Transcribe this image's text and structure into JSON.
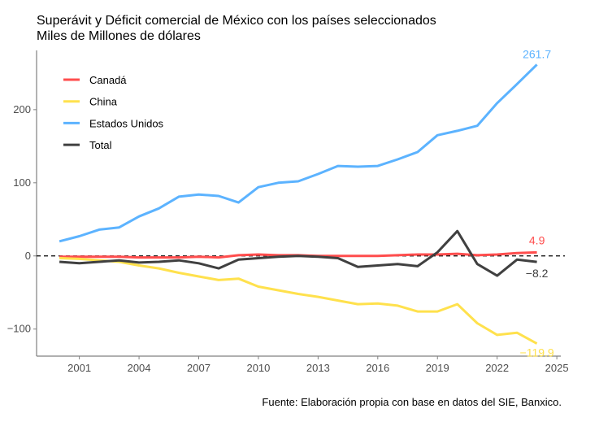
{
  "chart_data": {
    "type": "line",
    "title": "Superávit y Déficit comercial de México con los países seleccionados",
    "subtitle": "Miles de Millones de dólares",
    "caption": "Fuente: Elaboración propia con base en datos del SIE, Banxico.",
    "xlabel": "",
    "ylabel": "",
    "xlim": [
      1998.85,
      2025.2
    ],
    "ylim": [
      -137,
      281
    ],
    "xticks": [
      2001,
      2004,
      2007,
      2010,
      2013,
      2016,
      2019,
      2022,
      2025
    ],
    "yticks": [
      -100,
      0,
      100,
      200
    ],
    "ytick_labels": [
      "−100",
      "0",
      "100",
      "200"
    ],
    "grid": false,
    "legend_position": "top-left",
    "reference_line": 0,
    "x": [
      2000,
      2001,
      2002,
      2003,
      2004,
      2005,
      2006,
      2007,
      2008,
      2009,
      2010,
      2011,
      2012,
      2013,
      2014,
      2015,
      2016,
      2017,
      2018,
      2019,
      2020,
      2021,
      2022,
      2023,
      2024
    ],
    "series": [
      {
        "name": "Canadá",
        "color": "#ff4d4d",
        "end_label": "4.9",
        "values": [
          -1,
          -1,
          -1,
          -1,
          -2,
          -2,
          -2,
          -1,
          -2,
          1,
          2,
          1,
          1,
          0,
          0,
          0,
          0,
          1,
          2,
          2,
          3,
          1,
          2,
          4,
          4.9
        ]
      },
      {
        "name": "China",
        "color": "#ffe14d",
        "end_label": "−119.9",
        "values": [
          -3,
          -4,
          -6,
          -8,
          -13,
          -17,
          -23,
          -28,
          -33,
          -31,
          -42,
          -47,
          -52,
          -56,
          -61,
          -66,
          -65,
          -68,
          -76,
          -76,
          -66,
          -92,
          -108,
          -105,
          -119.9
        ]
      },
      {
        "name": "Estados Unidos",
        "color": "#5cb3ff",
        "end_label": "261.7",
        "values": [
          20,
          27,
          36,
          39,
          54,
          65,
          81,
          84,
          82,
          73,
          94,
          100,
          102,
          112,
          123,
          122,
          123,
          132,
          142,
          165,
          171,
          178,
          209,
          235,
          261.7
        ]
      },
      {
        "name": "Total",
        "color": "#404040",
        "end_label": "−8.2",
        "values": [
          -8,
          -10,
          -8,
          -6,
          -9,
          -8,
          -6,
          -10,
          -17,
          -5,
          -3,
          -1,
          0,
          -1,
          -3,
          -15,
          -13,
          -11,
          -14,
          5,
          34,
          -11,
          -27,
          -5,
          -8.2
        ]
      }
    ]
  }
}
